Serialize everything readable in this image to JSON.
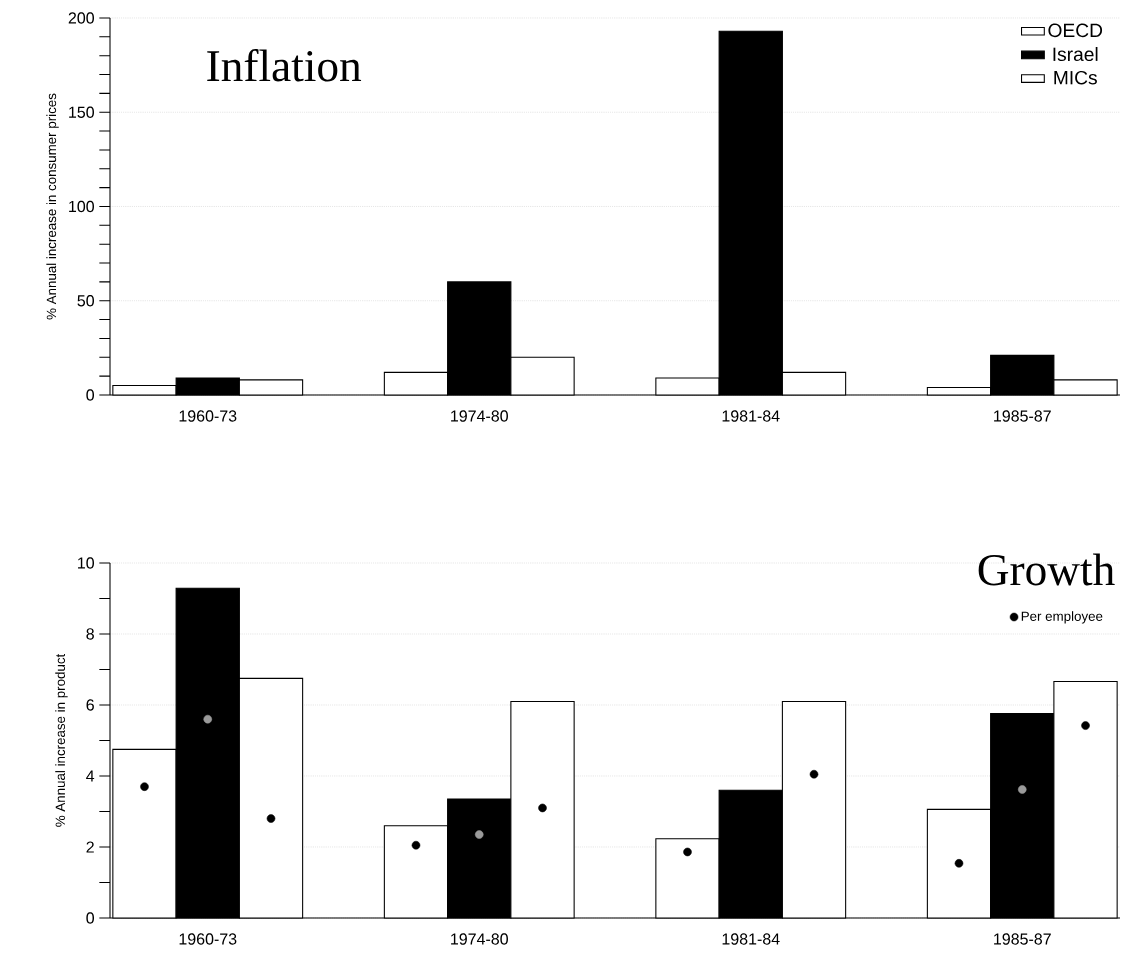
{
  "chart_data": [
    {
      "type": "bar",
      "title": "Inflation",
      "ylabel": "% Annual increase in consumer prices",
      "categories": [
        "1960-73",
        "1974-80",
        "1981-84",
        "1985-87"
      ],
      "series": [
        {
          "name": "OECD",
          "color": "#000000",
          "values": [
            5,
            12,
            9,
            4
          ]
        },
        {
          "name": "Israel",
          "color": "#000000",
          "values": [
            9,
            60,
            193,
            21
          ]
        },
        {
          "name": "MICs",
          "color": "#000000",
          "values": [
            8,
            20,
            12,
            8
          ]
        }
      ],
      "ylim": [
        0,
        200
      ],
      "yticks": [
        0,
        50,
        100,
        150,
        200
      ],
      "grid": "y",
      "legend": "top right"
    },
    {
      "type": "bar",
      "title": "Growth",
      "ylabel": "% Annual increase in product",
      "categories": [
        "1960-73",
        "1974-80",
        "1981-84",
        "1985-87"
      ],
      "series": [
        {
          "color": "#000000",
          "values": [
            4.75,
            2.6,
            2.23,
            3.06
          ]
        },
        {
          "color": "#000000",
          "values": [
            9.29,
            3.35,
            3.6,
            5.76
          ]
        },
        {
          "color": "#000000",
          "values": [
            6.75,
            6.1,
            6.1,
            6.66
          ]
        },
        {
          "type": "scatter",
          "name": "Per employee",
          "color": "#000000",
          "x": [
            "1960-73",
            "1974-80",
            "1981-84",
            "1985-87"
          ],
          "values": [
            3.7,
            2.05,
            1.86,
            1.54
          ]
        },
        {
          "type": "scatter",
          "color": "#9a9a9a",
          "x": [
            "1960-73",
            "1974-80",
            "1981-84",
            "1985-87"
          ],
          "values": [
            5.6,
            2.35,
            null,
            3.62
          ]
        },
        {
          "type": "scatter",
          "color": "#000000",
          "x": [
            "1960-73",
            "1974-80",
            "1981-84",
            "1985-87"
          ],
          "values": [
            2.8,
            3.1,
            4.05,
            5.42
          ]
        }
      ],
      "ylim": [
        0,
        10
      ],
      "yticks": [
        0,
        2,
        4,
        6,
        8,
        10
      ],
      "grid": "y",
      "legend": "top right"
    }
  ]
}
